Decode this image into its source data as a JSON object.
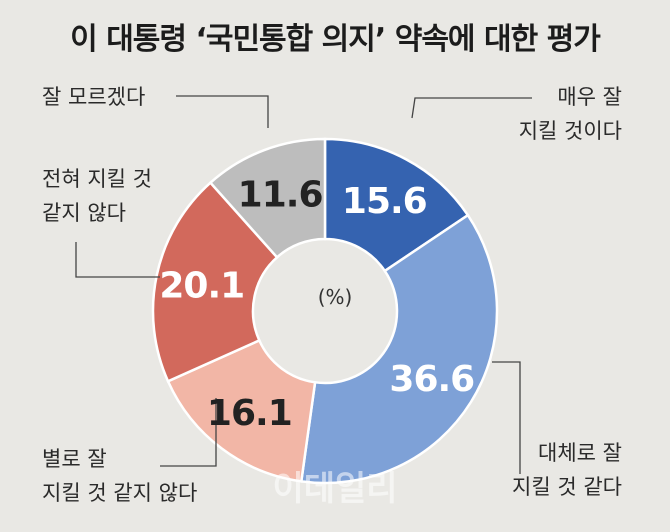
{
  "chart_data": {
    "type": "pie",
    "title": "이 대통령 ‘국민통합 의지’ 약속에 대한 평가",
    "center_label": "(%)",
    "slices": [
      {
        "label_lines": [
          "매우 잘",
          "지킬 것이다"
        ],
        "value": 15.6,
        "value_label": "15.6",
        "color": "#3563b0",
        "value_color": "#ffffff"
      },
      {
        "label_lines": [
          "대체로 잘",
          "지킬 것 같다"
        ],
        "value": 36.6,
        "value_label": "36.6",
        "color": "#7ea1d7",
        "value_color": "#ffffff"
      },
      {
        "label_lines": [
          "별로 잘",
          "지킬 것 같지 않다"
        ],
        "value": 16.1,
        "value_label": "16.1",
        "color": "#f2b6a6",
        "value_color": "#222222"
      },
      {
        "label_lines": [
          "전혀 지킬 것",
          "같지 않다"
        ],
        "value": 20.1,
        "value_label": "20.1",
        "color": "#d2695c",
        "value_color": "#ffffff"
      },
      {
        "label_lines": [
          "잘 모르겠다"
        ],
        "value": 11.6,
        "value_label": "11.6",
        "color": "#bdbdbd",
        "value_color": "#222222"
      }
    ],
    "watermark": "이데일리"
  }
}
